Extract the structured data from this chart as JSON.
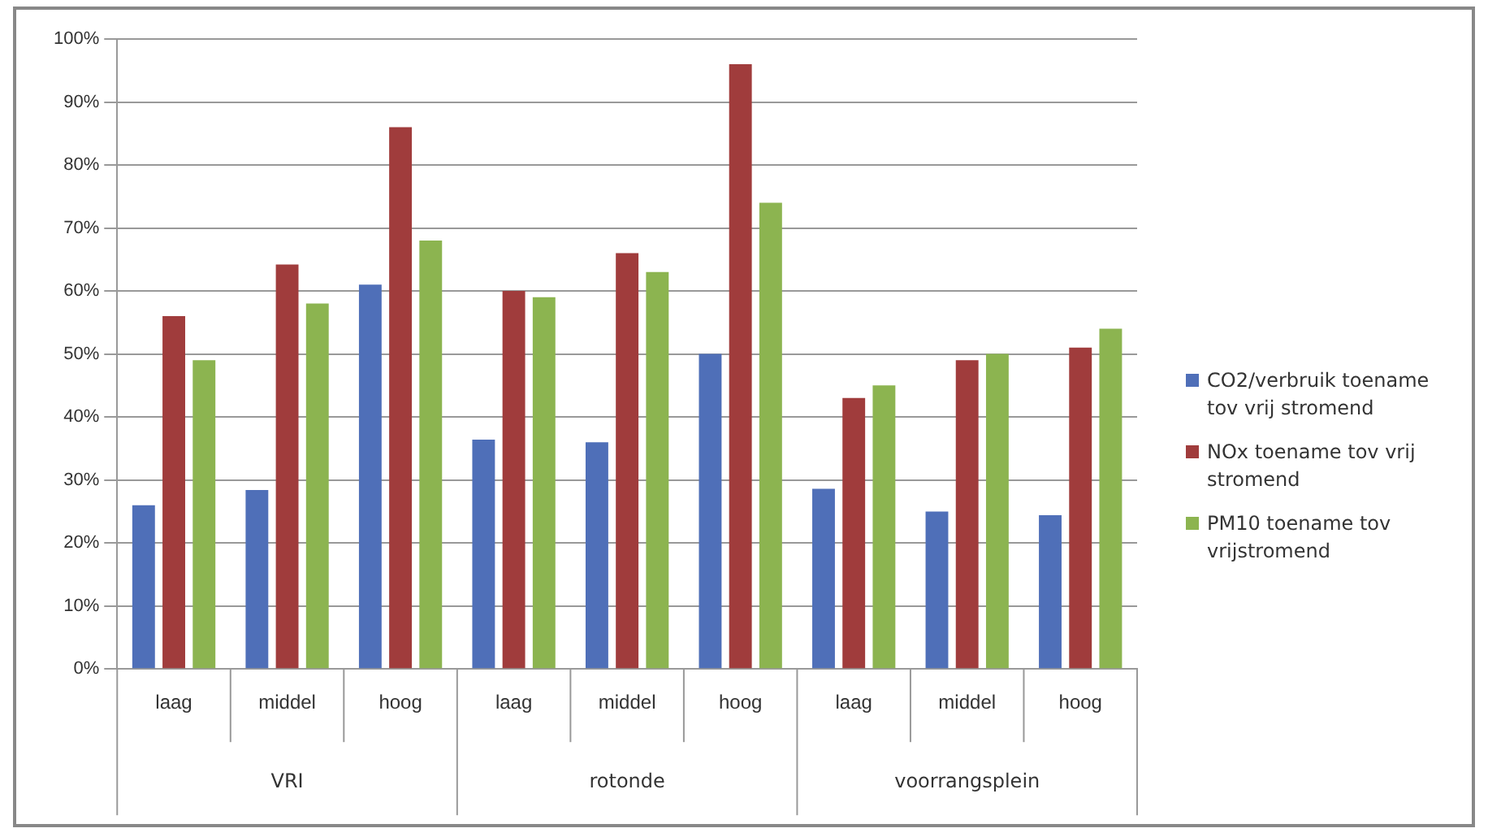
{
  "chart_data": {
    "type": "bar",
    "categories": [
      "laag",
      "middel",
      "hoog",
      "laag",
      "middel",
      "hoog",
      "laag",
      "middel",
      "hoog"
    ],
    "annotations": [
      "VRI",
      "rotonde",
      "voorrangsplein"
    ],
    "series": [
      {
        "name": "CO2/verbruik toename tov vrij stromend",
        "color": "#4f6fb8",
        "values": [
          26,
          28.4,
          61,
          36.4,
          36,
          50,
          28.6,
          25,
          24.4
        ]
      },
      {
        "name": "NOx toename tov vrij stromend",
        "color": "#a03c3c",
        "values": [
          56,
          64.2,
          86,
          60,
          66,
          96,
          43,
          49,
          51
        ]
      },
      {
        "name": "PM10 toename tov vrijstromend",
        "color": "#8cb450",
        "values": [
          49,
          58,
          68,
          59,
          63,
          74,
          45,
          50,
          54
        ]
      }
    ],
    "ylim": [
      0,
      100
    ],
    "yticks": [
      {
        "value": 0,
        "label": "0%"
      },
      {
        "value": 10,
        "label": "10%"
      },
      {
        "value": 20,
        "label": "20%"
      },
      {
        "value": 30,
        "label": "30%"
      },
      {
        "value": 40,
        "label": "40%"
      },
      {
        "value": 50,
        "label": "50%"
      },
      {
        "value": 60,
        "label": "60%"
      },
      {
        "value": 70,
        "label": "70%"
      },
      {
        "value": 80,
        "label": "80%"
      },
      {
        "value": 90,
        "label": "90%"
      },
      {
        "value": 100,
        "label": "100%"
      }
    ],
    "grid": "y",
    "legend": "right"
  }
}
